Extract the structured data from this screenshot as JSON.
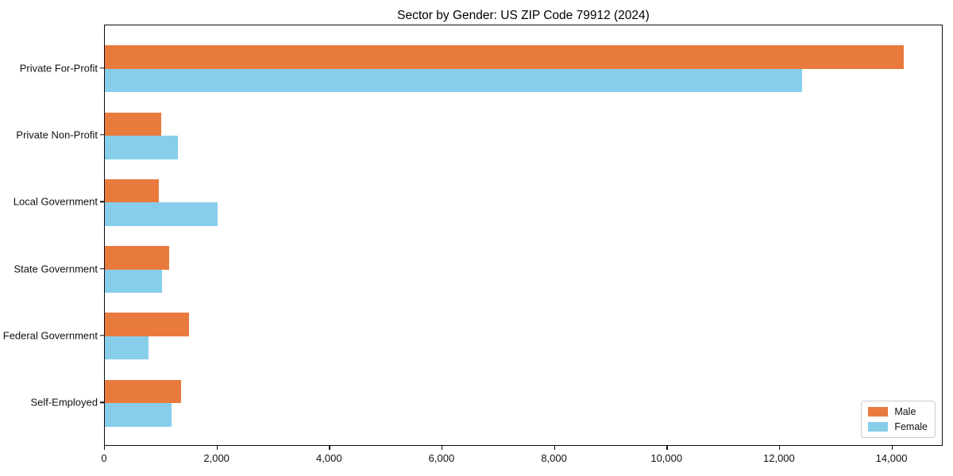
{
  "chart_data": {
    "type": "bar",
    "orientation": "horizontal",
    "title": "Sector by Gender: US ZIP Code 79912 (2024)",
    "categories": [
      "Private For-Profit",
      "Private Non-Profit",
      "Local Government",
      "State Government",
      "Federal Government",
      "Self-Employed"
    ],
    "series": [
      {
        "name": "Male",
        "color": "#e87a3e",
        "values": [
          14200,
          1000,
          960,
          1150,
          1500,
          1360
        ]
      },
      {
        "name": "Female",
        "color": "#87ceeb",
        "values": [
          12400,
          1300,
          2000,
          1010,
          780,
          1180
        ]
      }
    ],
    "xlabel": "",
    "ylabel": "",
    "xlim": [
      0,
      14910
    ],
    "x_ticks": [
      0,
      2000,
      4000,
      6000,
      8000,
      10000,
      12000,
      14000
    ],
    "x_tick_labels": [
      "0",
      "2,000",
      "4,000",
      "6,000",
      "8,000",
      "10,000",
      "12,000",
      "14,000"
    ],
    "grid": false,
    "legend": {
      "position": "lower right"
    }
  }
}
